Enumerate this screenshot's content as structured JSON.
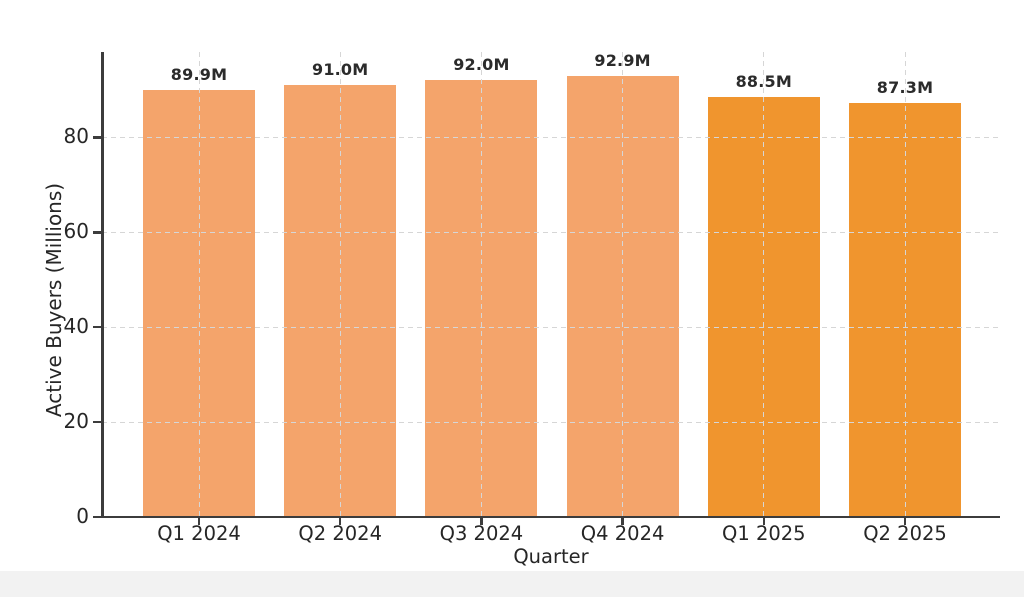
{
  "chart_data": {
    "type": "bar",
    "title": "",
    "xlabel": "Quarter",
    "ylabel": "Active Buyers (Millions)",
    "categories": [
      "Q1 2024",
      "Q2 2024",
      "Q3 2024",
      "Q4 2024",
      "Q1 2025",
      "Q2 2025"
    ],
    "values": [
      89.9,
      91.0,
      92.0,
      92.9,
      88.5,
      87.3
    ],
    "bar_labels": [
      "89.9M",
      "91.0M",
      "92.0M",
      "92.9M",
      "88.5M",
      "87.3M"
    ],
    "bar_colors": [
      "#F4A46B",
      "#F4A46B",
      "#F4A46B",
      "#F4A46B",
      "#F0952E",
      "#F0952E"
    ],
    "yticks": [
      0,
      20,
      40,
      60,
      80
    ],
    "ylim": [
      0,
      98
    ],
    "grid": "dashed horizontal lines at y-ticks and dashed vertical lines at bar centers, drawn above bars",
    "legend": "none"
  },
  "style": {
    "bar_color_2024": "#F4A46B",
    "bar_color_2025": "#F0952E",
    "grid_color": "#d6d6d6",
    "spine_color": "#3c3c3c",
    "text_color": "#262626",
    "value_label_color": "#2b2b2b",
    "background": "#ffffff",
    "footer_strip_color": "#f2f2f2"
  }
}
